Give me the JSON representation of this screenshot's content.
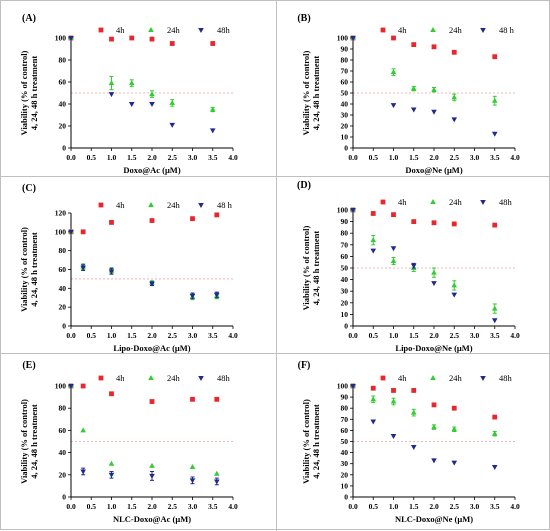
{
  "colors": {
    "h4": "#e8262b",
    "h24": "#33cc33",
    "h48": "#1f2b8c",
    "ref": "#f0a0a0",
    "axis": "#000000"
  },
  "chart_data": [
    {
      "type": "scatter",
      "panel_label": "(A)",
      "xlabel": "Doxo@Ac (μM)",
      "ylabel": [
        "Viability (% of control)",
        "4, 24, 48 h treatment"
      ],
      "xlim": [
        0,
        4
      ],
      "ylim": [
        0,
        100
      ],
      "xticks": [
        "0.0",
        "0.5",
        "1.0",
        "1.5",
        "2.0",
        "2.5",
        "3.0",
        "3.5",
        "4.0"
      ],
      "yticks": [
        "0",
        "20",
        "40",
        "60",
        "80",
        "100"
      ],
      "legend": [
        "4h",
        "24h",
        "48h"
      ],
      "ref_line": 50,
      "series": [
        {
          "key": "h4",
          "name": "4h",
          "x": [
            0,
            1,
            1.5,
            2,
            2.5,
            3.5
          ],
          "y": [
            100,
            99,
            100,
            99,
            95,
            95
          ],
          "err": [
            0,
            0,
            0,
            0,
            0,
            0
          ]
        },
        {
          "key": "h24",
          "name": "24h",
          "x": [
            0,
            1,
            1.5,
            2,
            2.5,
            3.5
          ],
          "y": [
            100,
            59,
            59,
            49,
            41,
            35
          ],
          "err": [
            0,
            6,
            3,
            3,
            3,
            2
          ]
        },
        {
          "key": "h48",
          "name": "48h",
          "x": [
            0,
            1,
            1.5,
            2,
            2.5,
            3.5
          ],
          "y": [
            100,
            49,
            40,
            40,
            21,
            16
          ],
          "err": [
            0,
            0,
            0,
            0,
            0,
            0
          ]
        }
      ]
    },
    {
      "type": "scatter",
      "panel_label": "(B)",
      "xlabel": "Doxo@Ne (μM)",
      "ylabel": [
        "Viability (% of control)",
        "4, 24, 48 h treatment"
      ],
      "xlim": [
        0,
        4
      ],
      "ylim": [
        0,
        100
      ],
      "xticks": [
        "0.0",
        "0.5",
        "1.0",
        "1.5",
        "2.0",
        "2.5",
        "3.0",
        "3.5",
        "4.0"
      ],
      "yticks": [
        "0",
        "10",
        "20",
        "30",
        "40",
        "50",
        "60",
        "70",
        "80",
        "90",
        "100"
      ],
      "legend": [
        "4h",
        "24h",
        "48 h"
      ],
      "ref_line": 50,
      "series": [
        {
          "key": "h4",
          "name": "4h",
          "x": [
            0,
            1,
            1.5,
            2,
            2.5,
            3.5
          ],
          "y": [
            100,
            100,
            94,
            92,
            87,
            83
          ],
          "err": [
            0,
            0,
            0,
            0,
            0,
            0
          ]
        },
        {
          "key": "h24",
          "name": "24h",
          "x": [
            0,
            1,
            1.5,
            2,
            2.5,
            3.5
          ],
          "y": [
            100,
            69,
            54,
            53,
            46,
            43
          ],
          "err": [
            0,
            3,
            2,
            2,
            3,
            4
          ]
        },
        {
          "key": "h48",
          "name": "48 h",
          "x": [
            0,
            1,
            1.5,
            2,
            2.5,
            3.5
          ],
          "y": [
            100,
            39,
            35,
            33,
            26,
            13
          ],
          "err": [
            0,
            0,
            0,
            0,
            0,
            0
          ]
        }
      ]
    },
    {
      "type": "scatter",
      "panel_label": "(C)",
      "xlabel": "Lipo-Doxo@Ac (μM)",
      "ylabel": [
        "Viability (% of control)",
        "4, 24, 48 h treatment"
      ],
      "xlim": [
        0,
        4
      ],
      "ylim": [
        0,
        120
      ],
      "xticks": [
        "0.0",
        "0.5",
        "1.0",
        "1.5",
        "2.0",
        "2.5",
        "3.0",
        "3.5",
        "4.0"
      ],
      "yticks": [
        "0",
        "20",
        "40",
        "60",
        "80",
        "100",
        "120"
      ],
      "legend": [
        "4h",
        "24h",
        "48 h"
      ],
      "ref_line": 50,
      "series": [
        {
          "key": "h4",
          "name": "4h",
          "x": [
            0,
            0.3,
            1,
            2,
            3,
            3.6
          ],
          "y": [
            100,
            100,
            110,
            112,
            114,
            118
          ],
          "err": [
            0,
            0,
            0,
            0,
            0,
            0
          ]
        },
        {
          "key": "h24",
          "name": "24h",
          "x": [
            0,
            0.3,
            1,
            2,
            3,
            3.6
          ],
          "y": [
            100,
            63,
            59,
            46,
            31,
            32
          ],
          "err": [
            0,
            3,
            3,
            2,
            3,
            3
          ]
        },
        {
          "key": "h48",
          "name": "48 h",
          "x": [
            0,
            0.3,
            1,
            2,
            3,
            3.6
          ],
          "y": [
            100,
            62,
            58,
            45,
            32,
            33
          ],
          "err": [
            0,
            3,
            3,
            2,
            3,
            3
          ]
        }
      ]
    },
    {
      "type": "scatter",
      "panel_label": "(D)",
      "xlabel": "Lipo-Doxo@Ne (μM)",
      "ylabel": [
        "Viability (% of control)",
        "4, 24, 48 h treatment"
      ],
      "xlim": [
        0,
        4
      ],
      "ylim": [
        0,
        100
      ],
      "xticks": [
        "0.0",
        "0.5",
        "1.0",
        "1.5",
        "2.0",
        "2.5",
        "3.0",
        "3.5",
        "4.0"
      ],
      "yticks": [
        "0",
        "10",
        "20",
        "30",
        "40",
        "50",
        "60",
        "70",
        "80",
        "90",
        "100"
      ],
      "legend": [
        "4h",
        "24h",
        "48h"
      ],
      "ref_line": 50,
      "series": [
        {
          "key": "h4",
          "name": "4h",
          "x": [
            0,
            0.5,
            1,
            1.5,
            2,
            2.5,
            3.5
          ],
          "y": [
            100,
            97,
            96,
            90,
            89,
            88,
            87
          ],
          "err": [
            0,
            0,
            0,
            0,
            0,
            0,
            0
          ]
        },
        {
          "key": "h24",
          "name": "24h",
          "x": [
            0,
            0.5,
            1,
            1.5,
            2,
            2.5,
            3.5
          ],
          "y": [
            100,
            74,
            56,
            50,
            46,
            35,
            15
          ],
          "err": [
            0,
            4,
            3,
            3,
            4,
            4,
            4
          ]
        },
        {
          "key": "h48",
          "name": "48h",
          "x": [
            0,
            0.5,
            1,
            1.5,
            2,
            2.5,
            3.5
          ],
          "y": [
            100,
            65,
            67,
            52,
            37,
            27,
            5
          ],
          "err": [
            0,
            0,
            0,
            2,
            0,
            0,
            0
          ]
        }
      ]
    },
    {
      "type": "scatter",
      "panel_label": "(E)",
      "xlabel": "NLC-Doxo@Ac (μM)",
      "ylabel": [
        "Viability (% of control)",
        "4, 24, 48 h treatment"
      ],
      "xlim": [
        0,
        4
      ],
      "ylim": [
        0,
        100
      ],
      "xticks": [
        "0.0",
        "0.5",
        "1.0",
        "1.5",
        "2.0",
        "2.5",
        "3.0",
        "3.5",
        "4.0"
      ],
      "yticks": [
        "0",
        "20",
        "40",
        "60",
        "80",
        "100"
      ],
      "legend": [
        "4h",
        "24h",
        "48h"
      ],
      "ref_line": 50,
      "series": [
        {
          "key": "h4",
          "name": "4h",
          "x": [
            0,
            0.3,
            1,
            2,
            3,
            3.6
          ],
          "y": [
            100,
            100,
            93,
            86,
            88,
            88
          ],
          "err": [
            0,
            0,
            0,
            0,
            0,
            0
          ]
        },
        {
          "key": "h24",
          "name": "24h",
          "x": [
            0,
            0.3,
            1,
            2,
            3,
            3.6
          ],
          "y": [
            100,
            60,
            30,
            28,
            27,
            21
          ],
          "err": [
            0,
            0,
            0,
            0,
            0,
            0
          ]
        },
        {
          "key": "h48",
          "name": "48h",
          "x": [
            0,
            0.3,
            1,
            2,
            3,
            3.6
          ],
          "y": [
            100,
            23,
            20,
            19,
            15,
            14
          ],
          "err": [
            0,
            3,
            3,
            4,
            3,
            3
          ]
        }
      ]
    },
    {
      "type": "scatter",
      "panel_label": "(F)",
      "xlabel": "NLC-Doxo@Ne (μM)",
      "ylabel": [
        "Viability (% of control)",
        "4, 24, 48 h treatment"
      ],
      "xlim": [
        0,
        4
      ],
      "ylim": [
        0,
        100
      ],
      "xticks": [
        "0.0",
        "0.5",
        "1.0",
        "1.5",
        "2.0",
        "2.5",
        "3.0",
        "3.5",
        "4.0"
      ],
      "yticks": [
        "0",
        "10",
        "20",
        "30",
        "40",
        "50",
        "60",
        "70",
        "80",
        "90",
        "100"
      ],
      "legend": [
        "4h",
        "24h",
        "48h"
      ],
      "ref_line": 50,
      "series": [
        {
          "key": "h4",
          "name": "4h",
          "x": [
            0,
            0.5,
            1,
            1.5,
            2,
            2.5,
            3.5
          ],
          "y": [
            100,
            98,
            96,
            96,
            83,
            80,
            72
          ],
          "err": [
            0,
            0,
            0,
            0,
            0,
            0,
            0
          ]
        },
        {
          "key": "h24",
          "name": "24h",
          "x": [
            0,
            0.5,
            1,
            1.5,
            2,
            2.5,
            3.5
          ],
          "y": [
            100,
            88,
            86,
            76,
            63,
            61,
            57
          ],
          "err": [
            0,
            3,
            3,
            3,
            2,
            2,
            2
          ]
        },
        {
          "key": "h48",
          "name": "48h",
          "x": [
            0,
            0.5,
            1,
            1.5,
            2,
            2.5,
            3.5
          ],
          "y": [
            100,
            68,
            55,
            45,
            33,
            31,
            27
          ],
          "err": [
            0,
            0,
            0,
            0,
            0,
            0,
            0
          ]
        }
      ]
    }
  ]
}
